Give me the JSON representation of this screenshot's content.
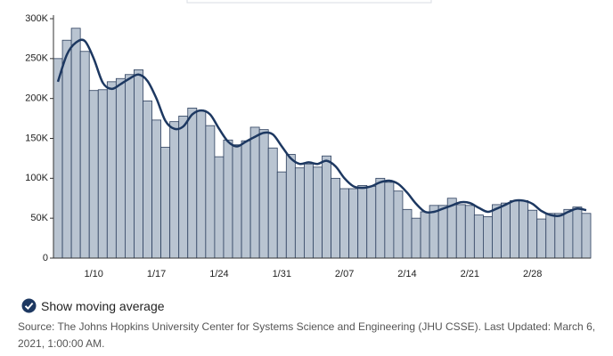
{
  "chart_data": {
    "type": "bar",
    "categories": [
      null,
      null,
      null,
      null,
      "1/10",
      null,
      null,
      null,
      null,
      null,
      null,
      "1/17",
      null,
      null,
      null,
      null,
      null,
      null,
      "1/24",
      null,
      null,
      null,
      null,
      null,
      null,
      "1/31",
      null,
      null,
      null,
      null,
      null,
      null,
      "2/07",
      null,
      null,
      null,
      null,
      null,
      null,
      "2/14",
      null,
      null,
      null,
      null,
      null,
      null,
      "2/21",
      null,
      null,
      null,
      null,
      null,
      null,
      "2/28",
      null,
      null,
      null,
      null,
      null,
      null
    ],
    "series": [
      {
        "color": "#b9c4d1",
        "values": [
          250,
          273,
          288,
          259,
          210,
          211,
          221,
          225,
          230,
          236,
          197,
          173,
          139,
          171,
          178,
          188,
          185,
          166,
          127,
          148,
          142,
          147,
          164,
          161,
          138,
          108,
          130,
          113,
          118,
          114,
          128,
          100,
          87,
          87,
          91,
          90,
          100,
          95,
          84,
          61,
          50,
          58,
          66,
          66,
          75,
          67,
          66,
          54,
          52,
          67,
          69,
          72,
          72,
          60,
          49,
          56,
          56,
          61,
          64,
          56
        ]
      },
      {
        "name": "Show moving average",
        "color": "#1d3861",
        "values": [
          221,
          255,
          270,
          272,
          250,
          220,
          212,
          218,
          225,
          230,
          222,
          200,
          172,
          162,
          165,
          180,
          185,
          180,
          162,
          146,
          140,
          146,
          152,
          157,
          155,
          140,
          125,
          118,
          120,
          118,
          122,
          115,
          100,
          90,
          88,
          90,
          95,
          97,
          93,
          82,
          68,
          58,
          58,
          62,
          66,
          70,
          69,
          63,
          58,
          62,
          67,
          72,
          72,
          68,
          59,
          54,
          53,
          58,
          62,
          60
        ]
      }
    ],
    "ylim": [
      0,
      300
    ],
    "yticks": [
      0,
      {
        "value": 50,
        "label": "50K"
      },
      {
        "value": 100,
        "label": "100K"
      },
      {
        "value": 150,
        "label": "150K"
      },
      {
        "value": 200,
        "label": "200K"
      },
      {
        "value": 250,
        "label": "250K"
      },
      {
        "value": 300,
        "label": "300K"
      }
    ],
    "source": "Source: The Johns Hopkins University Center for Systems Science and Engineering (JHU CSSE). Last Updated: March 6, 2021, 1:00:00 AM."
  }
}
